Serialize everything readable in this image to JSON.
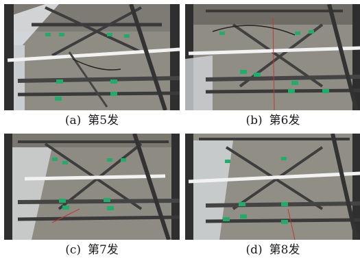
{
  "panels": [
    {
      "id": "a",
      "letter": "(a)",
      "text": "第5发"
    },
    {
      "id": "b",
      "letter": "(b)",
      "text": "第6发"
    },
    {
      "id": "c",
      "letter": "(c)",
      "text": "第7发"
    },
    {
      "id": "d",
      "letter": "(d)",
      "text": "第8发"
    }
  ],
  "colors": {
    "steel_dark": "#3a3a3a",
    "concrete": "#9a978f",
    "gauge_green": "#1fae6a",
    "white_bar": "#f2f2f2",
    "plate_light": "#d9dde0",
    "wire_red": "#c0392b"
  }
}
